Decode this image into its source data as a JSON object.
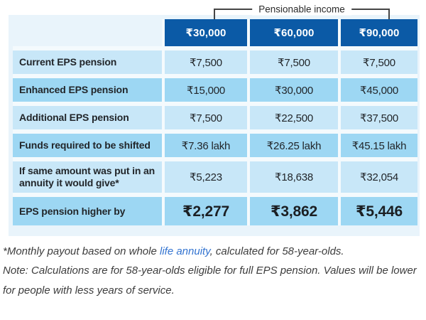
{
  "bracket": {
    "label": "Pensionable income"
  },
  "table": {
    "columns": [
      "₹30,000",
      "₹60,000",
      "₹90,000"
    ],
    "rows": [
      {
        "label": "Current EPS pension",
        "values": [
          "₹7,500",
          "₹7,500",
          "₹7,500"
        ]
      },
      {
        "label": "Enhanced EPS pension",
        "values": [
          "₹15,000",
          "₹30,000",
          "₹45,000"
        ]
      },
      {
        "label": "Additional EPS pension",
        "values": [
          "₹7,500",
          "₹22,500",
          "₹37,500"
        ]
      },
      {
        "label": "Funds required to be shifted",
        "values": [
          "₹7.36 lakh",
          "₹26.25 lakh",
          "₹45.15 lakh"
        ]
      },
      {
        "label": "If same amount was put in an annuity it would give*",
        "values": [
          "₹5,223",
          "₹18,638",
          "₹32,054"
        ]
      },
      {
        "label": "EPS pension higher by",
        "values": [
          "₹2,277",
          "₹3,862",
          "₹5,446"
        ]
      }
    ]
  },
  "footnotes": {
    "line1_prefix": "*Monthly payout based on whole ",
    "line1_link": "life annuity",
    "line1_suffix": ", calculated for 58-year-olds.",
    "note_line1": "Note: Calculations are for 58-year-olds eligible for full EPS pension. Values will be lower",
    "note_line2": "for people with less years of service."
  },
  "colors": {
    "header_blue": "#0b5aa6",
    "row_light": "#c8e7f8",
    "row_dark": "#9dd7f3",
    "panel_background": "#e9f4fb",
    "link_blue": "#3273d0",
    "text_dark": "#22262a"
  },
  "chart_data": {
    "type": "table",
    "title": "Pensionable income",
    "categories": [
      "₹30,000",
      "₹60,000",
      "₹90,000"
    ],
    "series": [
      {
        "name": "Current EPS pension",
        "values": [
          7500,
          7500,
          7500
        ]
      },
      {
        "name": "Enhanced EPS pension",
        "values": [
          15000,
          30000,
          45000
        ]
      },
      {
        "name": "Additional EPS pension",
        "values": [
          7500,
          22500,
          37500
        ]
      },
      {
        "name": "Funds required to be shifted (lakh)",
        "values": [
          7.36,
          26.25,
          45.15
        ]
      },
      {
        "name": "If same amount was put in an annuity it would give*",
        "values": [
          5223,
          18638,
          32054
        ]
      },
      {
        "name": "EPS pension higher by",
        "values": [
          2277,
          3862,
          5446
        ]
      }
    ]
  }
}
